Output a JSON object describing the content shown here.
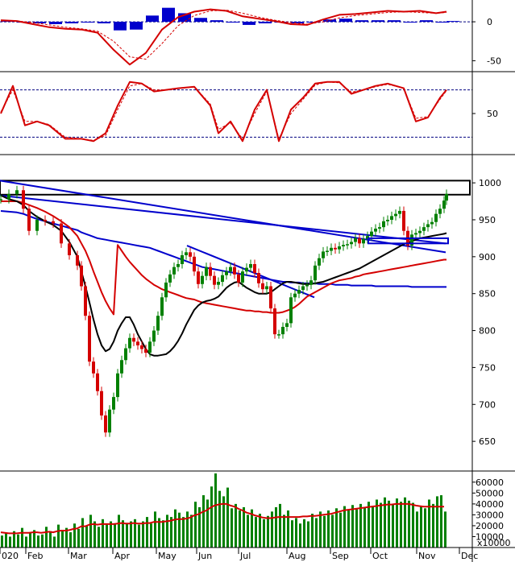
{
  "chart_data": [
    {
      "panel": "macd",
      "type": "line",
      "series_colors": [
        "#d40000",
        "#d40000",
        "#0000cc"
      ],
      "y_ticks": [
        "0",
        "-50"
      ],
      "y_tick_values": [
        0,
        -50
      ],
      "ylim": [
        -62,
        28
      ],
      "x": [
        0,
        20,
        40,
        60,
        80,
        100,
        120,
        140,
        160,
        180,
        200,
        220,
        240,
        260,
        280,
        300,
        320,
        340,
        360,
        380,
        400,
        420,
        440,
        460,
        480,
        500,
        520,
        540,
        553
      ],
      "macd": [
        2,
        1,
        -3,
        -7,
        -9,
        -10,
        -14,
        -36,
        -55,
        -40,
        -10,
        6,
        13,
        16,
        14,
        7,
        4,
        1,
        -3,
        -4,
        3,
        9,
        10,
        12,
        14,
        13,
        14,
        11,
        13
      ],
      "signal": [
        1,
        1,
        -1,
        -4,
        -7,
        -9,
        -12,
        -25,
        -45,
        -48,
        -28,
        -5,
        8,
        14,
        15,
        11,
        6,
        2,
        -1,
        -3,
        0,
        5,
        8,
        10,
        12,
        13,
        12,
        11,
        12
      ],
      "histogram": [
        1,
        0,
        -2,
        -3,
        -2,
        -1,
        -2,
        -11,
        -10,
        8,
        18,
        11,
        5,
        2,
        -1,
        -4,
        -2,
        -1,
        -2,
        -1,
        3,
        4,
        2,
        2,
        2,
        0,
        2,
        0,
        1
      ]
    },
    {
      "panel": "stochastic",
      "type": "line",
      "series_colors": [
        "#d40000",
        "#d40000"
      ],
      "y_ticks": [
        "50"
      ],
      "y_tick_values": [
        50
      ],
      "ylim": [
        0,
        100
      ],
      "reference_lines": [
        80,
        20
      ],
      "x": [
        0,
        15,
        30,
        45,
        60,
        80,
        100,
        115,
        130,
        145,
        160,
        175,
        190,
        205,
        220,
        240,
        260,
        270,
        285,
        300,
        315,
        330,
        345,
        360,
        375,
        390,
        405,
        420,
        435,
        450,
        465,
        480,
        500,
        515,
        530,
        545,
        553
      ],
      "k": [
        50,
        85,
        35,
        40,
        35,
        18,
        18,
        15,
        25,
        60,
        90,
        88,
        78,
        80,
        82,
        84,
        60,
        25,
        40,
        15,
        55,
        80,
        15,
        55,
        70,
        88,
        90,
        90,
        75,
        80,
        85,
        88,
        82,
        40,
        45,
        70,
        80
      ],
      "d": [
        52,
        80,
        40,
        40,
        36,
        20,
        18,
        16,
        22,
        55,
        85,
        88,
        80,
        80,
        82,
        84,
        62,
        30,
        38,
        18,
        50,
        78,
        18,
        50,
        68,
        86,
        90,
        89,
        77,
        80,
        84,
        87,
        82,
        44,
        46,
        68,
        79
      ]
    },
    {
      "panel": "price",
      "type": "line",
      "series_colors": [
        "#008000",
        "#d40000",
        "#000000",
        "#0000cc"
      ],
      "y_ticks": [
        "1000",
        "950",
        "900",
        "850",
        "800",
        "750",
        "700",
        "650"
      ],
      "y_tick_values": [
        1000,
        950,
        900,
        850,
        800,
        750,
        700,
        650
      ],
      "ylim": [
        612,
        1035
      ],
      "x_labels": [
        "020",
        "Feb",
        "Mar",
        "Apr",
        "May",
        "Jun",
        "Jul",
        "Aug",
        "Sep",
        "Oct",
        "Nov",
        "Dec"
      ],
      "x_label_positions": [
        0,
        32,
        85,
        140,
        194,
        244,
        296,
        356,
        410,
        460,
        517,
        570
      ],
      "x": [
        0,
        10,
        20,
        28,
        35,
        45,
        55,
        65,
        75,
        85,
        95,
        100,
        105,
        110,
        115,
        120,
        125,
        130,
        135,
        140,
        145,
        150,
        155,
        160,
        165,
        170,
        175,
        180,
        185,
        190,
        195,
        200,
        205,
        210,
        215,
        220,
        225,
        230,
        235,
        240,
        245,
        250,
        255,
        260,
        265,
        270,
        275,
        280,
        285,
        290,
        295,
        300,
        305,
        310,
        315,
        320,
        325,
        330,
        335,
        340,
        345,
        350,
        355,
        360,
        365,
        370,
        375,
        380,
        385,
        390,
        395,
        400,
        405,
        410,
        415,
        420,
        425,
        430,
        435,
        440,
        445,
        450,
        455,
        460,
        465,
        470,
        475,
        480,
        485,
        490,
        495,
        500,
        505,
        510,
        515,
        520,
        525,
        530,
        535,
        540,
        545,
        550,
        553
      ],
      "close": [
        978,
        985,
        990,
        965,
        935,
        950,
        948,
        945,
        918,
        902,
        888,
        860,
        820,
        758,
        742,
        718,
        685,
        662,
        693,
        710,
        742,
        760,
        776,
        790,
        785,
        780,
        775,
        770,
        785,
        800,
        820,
        845,
        865,
        876,
        886,
        890,
        902,
        906,
        900,
        880,
        863,
        874,
        886,
        874,
        862,
        866,
        875,
        880,
        886,
        876,
        865,
        880,
        885,
        890,
        878,
        864,
        856,
        860,
        830,
        795,
        795,
        805,
        810,
        845,
        850,
        855,
        860,
        862,
        868,
        888,
        898,
        907,
        908,
        912,
        910,
        914,
        916,
        917,
        920,
        925,
        918,
        924,
        928,
        934,
        938,
        940,
        948,
        950,
        955,
        958,
        962,
        935,
        915,
        930,
        932,
        935,
        940,
        944,
        947,
        958,
        965,
        976,
        985
      ],
      "ma_red": [
        975,
        975,
        975,
        973,
        970,
        966,
        961,
        955,
        948,
        940,
        928,
        918,
        908,
        895,
        880,
        866,
        852,
        840,
        830,
        822,
        916,
        908,
        900,
        893,
        887,
        881,
        875,
        870,
        866,
        862,
        859,
        856,
        854,
        852,
        850,
        848,
        846,
        844,
        843,
        842,
        840,
        838,
        837,
        836,
        835,
        834,
        833,
        832,
        831,
        830,
        829,
        828,
        827,
        827,
        826,
        826,
        825,
        825,
        824,
        824,
        824,
        825,
        827,
        829,
        832,
        836,
        841,
        846,
        849,
        852,
        855,
        858,
        861,
        864,
        866,
        868,
        869,
        870,
        871,
        873,
        874,
        876,
        877,
        878,
        879,
        880,
        881,
        882,
        883,
        884,
        885,
        886,
        887,
        888,
        889,
        890,
        891,
        892,
        893,
        894,
        895,
        896,
        896
      ],
      "ma_black": [
        983,
        978,
        975,
        970,
        962,
        954,
        948,
        943,
        935,
        920,
        900,
        880,
        860,
        838,
        815,
        795,
        780,
        772,
        775,
        785,
        800,
        810,
        818,
        818,
        808,
        795,
        785,
        775,
        768,
        766,
        766,
        767,
        768,
        772,
        778,
        786,
        796,
        808,
        818,
        828,
        834,
        838,
        840,
        841,
        843,
        846,
        852,
        858,
        862,
        865,
        866,
        862,
        858,
        855,
        852,
        850,
        850,
        850,
        852,
        856,
        860,
        864,
        866,
        866,
        865,
        864,
        863,
        863,
        863,
        864,
        865,
        866,
        868,
        870,
        872,
        874,
        876,
        878,
        880,
        882,
        884,
        887,
        890,
        893,
        896,
        899,
        902,
        905,
        908,
        911,
        914,
        917,
        919,
        921,
        923,
        925,
        926,
        927,
        928,
        929,
        930,
        931,
        932
      ],
      "ma_blue": [
        962,
        961,
        960,
        958,
        955,
        951,
        948,
        945,
        942,
        939,
        936,
        933,
        931,
        929,
        927,
        925,
        924,
        923,
        922,
        921,
        920,
        919,
        918,
        917,
        916,
        915,
        914,
        913,
        912,
        910,
        908,
        906,
        904,
        902,
        900,
        898,
        896,
        894,
        892,
        890,
        888,
        886,
        885,
        884,
        883,
        882,
        881,
        880,
        879,
        878,
        877,
        876,
        875,
        874,
        873,
        872,
        871,
        870,
        869,
        868,
        867,
        866,
        866,
        865,
        865,
        865,
        864,
        864,
        864,
        864,
        863,
        863,
        863,
        863,
        862,
        862,
        862,
        862,
        861,
        861,
        861,
        861,
        861,
        861,
        860,
        860,
        860,
        860,
        860,
        860,
        860,
        860,
        860,
        859,
        859,
        859,
        859,
        859,
        859,
        859,
        859,
        859,
        859
      ],
      "trendlines": [
        {
          "color": "#0000cc",
          "from": [
            0,
            1003
          ],
          "to": [
            553,
            906
          ]
        },
        {
          "color": "#0000cc",
          "from": [
            0,
            983
          ],
          "to": [
            553,
            918
          ]
        },
        {
          "color": "#0000cc",
          "from": [
            232,
            915
          ],
          "to": [
            390,
            845
          ]
        }
      ],
      "resistance_zone": {
        "from_x": 0,
        "to_x": 583,
        "y_low": 984,
        "y_high": 1003
      },
      "support_zone": {
        "from_x": 457,
        "to_x": 556,
        "y_low": 918,
        "y_high": 925
      }
    },
    {
      "panel": "volume",
      "type": "bar",
      "series_colors": [
        "#008000",
        "#d40000"
      ],
      "y_ticks": [
        "60000",
        "50000",
        "40000",
        "30000",
        "20000",
        "10000"
      ],
      "y_tick_values": [
        60000,
        50000,
        40000,
        30000,
        20000,
        10000
      ],
      "y_unit": "x10000",
      "ylim": [
        0,
        68000
      ],
      "x": [
        0,
        5,
        10,
        15,
        20,
        25,
        30,
        35,
        40,
        45,
        50,
        55,
        60,
        65,
        70,
        75,
        80,
        85,
        90,
        95,
        100,
        105,
        110,
        115,
        120,
        125,
        130,
        135,
        140,
        145,
        150,
        155,
        160,
        165,
        170,
        175,
        180,
        185,
        190,
        195,
        200,
        205,
        210,
        215,
        220,
        225,
        230,
        235,
        240,
        245,
        250,
        255,
        260,
        265,
        270,
        275,
        280,
        285,
        290,
        295,
        300,
        305,
        310,
        315,
        320,
        325,
        330,
        335,
        340,
        345,
        350,
        355,
        360,
        365,
        370,
        375,
        380,
        385,
        390,
        395,
        400,
        405,
        410,
        415,
        420,
        425,
        430,
        435,
        440,
        445,
        450,
        455,
        460,
        465,
        470,
        475,
        480,
        485,
        490,
        495,
        500,
        505,
        510,
        515,
        520,
        525,
        530,
        535,
        540,
        545,
        550
      ],
      "volume": [
        11000,
        13000,
        10000,
        15000,
        12000,
        18000,
        10000,
        14000,
        16000,
        11000,
        12000,
        19000,
        15000,
        10000,
        21000,
        16000,
        18000,
        14000,
        22000,
        17000,
        27000,
        20000,
        30000,
        24000,
        19000,
        26000,
        21000,
        24000,
        22000,
        30000,
        25000,
        22000,
        24000,
        26000,
        21000,
        24000,
        28000,
        22000,
        33000,
        27000,
        25000,
        30000,
        28000,
        35000,
        32000,
        28000,
        33000,
        30000,
        42000,
        37000,
        48000,
        44000,
        56000,
        68000,
        52000,
        47000,
        55000,
        36000,
        40000,
        34000,
        37000,
        30000,
        35000,
        28000,
        31000,
        26000,
        29000,
        33000,
        37000,
        40000,
        30000,
        34000,
        25000,
        27000,
        22000,
        26000,
        24000,
        31000,
        27000,
        33000,
        29000,
        34000,
        30000,
        36000,
        32000,
        38000,
        34000,
        39000,
        35000,
        40000,
        37000,
        42000,
        38000,
        44000,
        41000,
        46000,
        43000,
        40000,
        45000,
        42000,
        46000,
        43000,
        41000,
        33000,
        38000,
        36000,
        44000,
        40000,
        47000,
        48000,
        33000
      ],
      "volume_ma": [
        14000,
        13500,
        13000,
        13000,
        13000,
        13500,
        13500,
        13500,
        14000,
        14000,
        13500,
        14000,
        14500,
        14000,
        15000,
        15500,
        15500,
        16000,
        17000,
        17500,
        19500,
        19500,
        21000,
        21500,
        21000,
        21500,
        21500,
        21500,
        21500,
        22000,
        22500,
        22000,
        22000,
        22500,
        22000,
        22000,
        22500,
        22500,
        23500,
        23500,
        23500,
        24000,
        24500,
        25500,
        26000,
        26000,
        26500,
        27500,
        29500,
        30500,
        32500,
        34000,
        36500,
        38500,
        39500,
        40000,
        40000,
        38500,
        37500,
        35500,
        34000,
        32000,
        31000,
        29500,
        28500,
        27500,
        27000,
        27000,
        27500,
        28000,
        28000,
        28000,
        28000,
        28000,
        28000,
        28500,
        28500,
        29000,
        29000,
        29500,
        30000,
        30500,
        31000,
        32000,
        33000,
        34000,
        34500,
        35000,
        35500,
        36000,
        36500,
        37000,
        37500,
        38000,
        38500,
        39000,
        39500,
        39500,
        40000,
        40000,
        40000,
        40000,
        39500,
        38500,
        38000,
        37500,
        37500,
        37500,
        37500,
        37500,
        37500
      ]
    }
  ]
}
